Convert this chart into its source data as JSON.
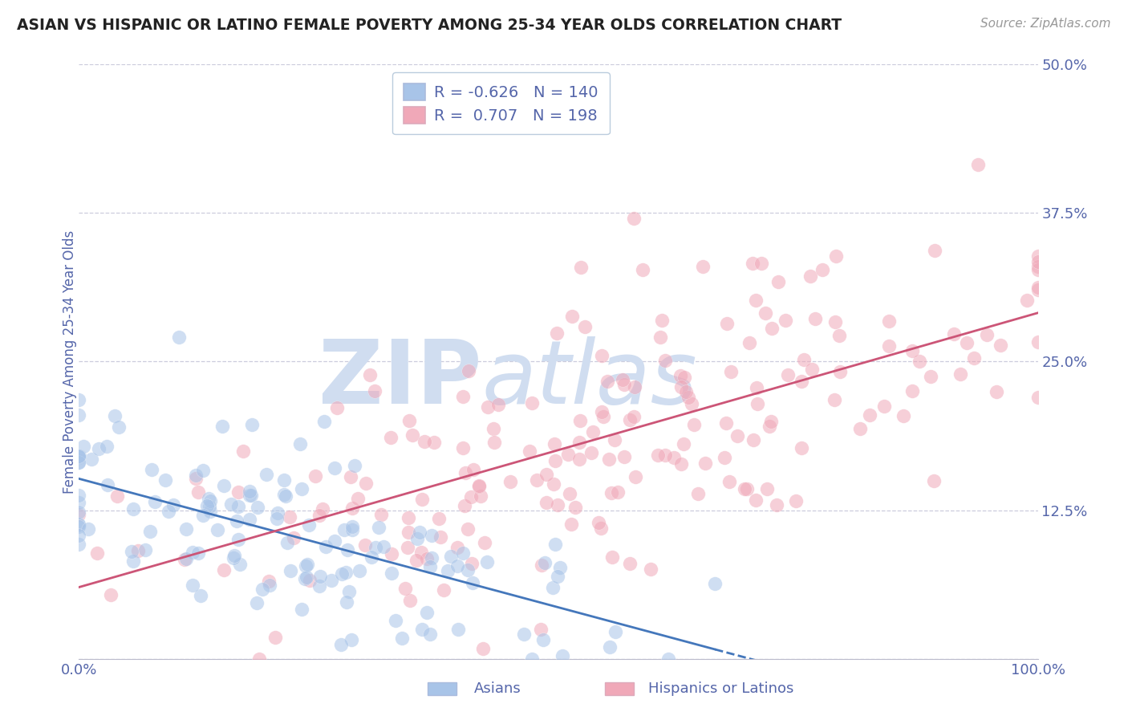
{
  "title": "ASIAN VS HISPANIC OR LATINO FEMALE POVERTY AMONG 25-34 YEAR OLDS CORRELATION CHART",
  "source": "Source: ZipAtlas.com",
  "ylabel": "Female Poverty Among 25-34 Year Olds",
  "legend_label_1": "Asians",
  "legend_label_2": "Hispanics or Latinos",
  "R1": "-0.626",
  "N1": "140",
  "R2": "0.707",
  "N2": "198",
  "xlim": [
    0,
    100
  ],
  "ylim": [
    0,
    50
  ],
  "xticks": [
    0,
    25,
    50,
    75,
    100
  ],
  "xticklabels": [
    "0.0%",
    "",
    "",
    "",
    "100.0%"
  ],
  "yticks": [
    0,
    12.5,
    25,
    37.5,
    50
  ],
  "yticklabels": [
    "",
    "12.5%",
    "25.0%",
    "37.5%",
    "50.0%"
  ],
  "color_asian": "#a8c4e8",
  "color_hispanic": "#f0a8b8",
  "color_asian_line": "#4477bb",
  "color_hispanic_line": "#cc5577",
  "color_text": "#5566aa",
  "background_color": "#ffffff",
  "watermark_color": "#d0ddf0",
  "grid_color": "#ccccdd",
  "scatter_alpha": 0.55,
  "scatter_size": 160,
  "seed": 42,
  "n_asian": 140,
  "n_hispanic": 198,
  "R_asian": -0.626,
  "R_hispanic": 0.707,
  "asian_x_mean": 22,
  "asian_x_std": 18,
  "asian_y_mean": 10,
  "asian_y_std": 5,
  "hispanic_x_mean": 55,
  "hispanic_x_std": 25,
  "hispanic_y_mean": 19,
  "hispanic_y_std": 8
}
